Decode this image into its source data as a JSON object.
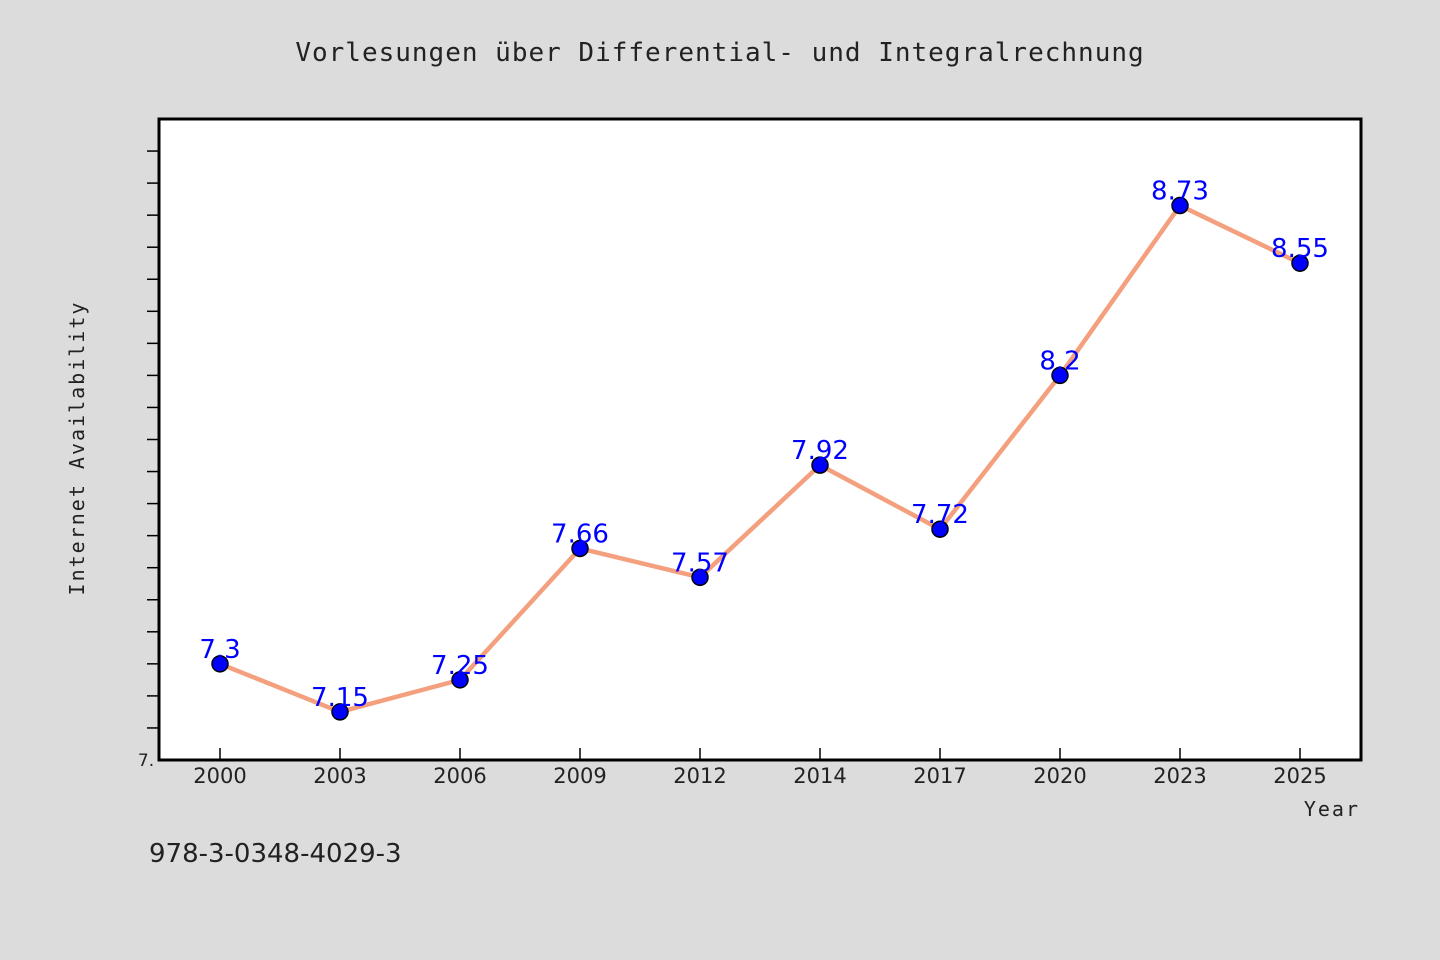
{
  "chart_data": {
    "type": "line",
    "title": "Vorlesungen über Differential- und Integralrechnung",
    "xlabel": "Year",
    "ylabel": "Internet Availability",
    "categories": [
      "2000",
      "2003",
      "2006",
      "2009",
      "2012",
      "2014",
      "2017",
      "2020",
      "2023",
      "2025"
    ],
    "series": [
      {
        "values": [
          7.3,
          7.15,
          7.25,
          7.66,
          7.57,
          7.92,
          7.72,
          8.2,
          8.73,
          8.55
        ],
        "labels": [
          "7.3",
          "7.15",
          "7.25",
          "7.66",
          "7.57",
          "7.92",
          "7.72",
          "8.2",
          "8.73",
          "8.55"
        ],
        "line_color": "#f4a07e",
        "marker_color": "#0000ff",
        "label_color": "#0000ff"
      }
    ],
    "ylim": [
      7.0,
      9.0
    ],
    "ytick_label": "7.",
    "grid": false,
    "legend": "none"
  },
  "footer_text": "978-3-0348-4029-3"
}
